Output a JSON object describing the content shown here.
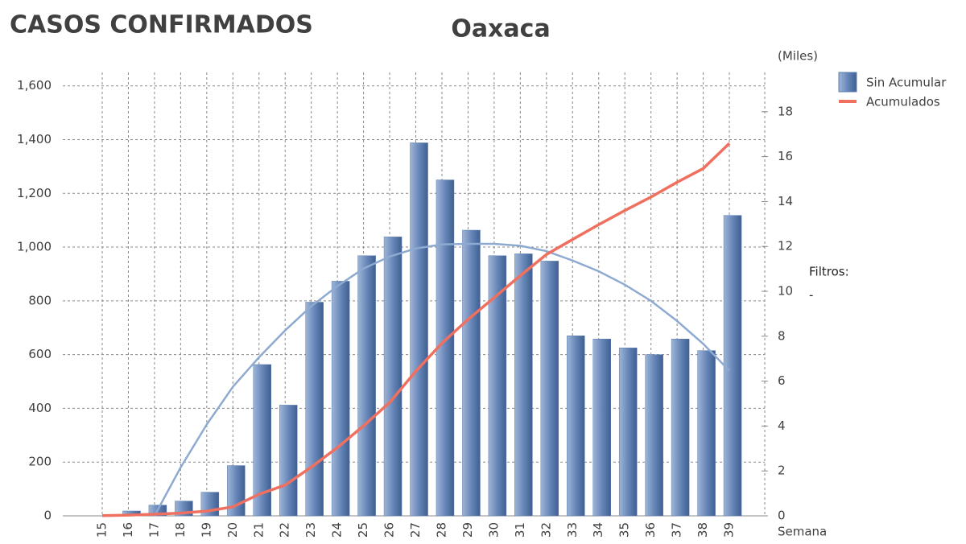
{
  "chart_data": {
    "type": "bar",
    "heading": "CASOS CONFIRMADOS",
    "title": "Oaxaca",
    "x_label": "Semana",
    "y2_label": "(Miles)",
    "filters_label": "Filtros:",
    "filters_value": "-",
    "categories": [
      "15",
      "16",
      "17",
      "18",
      "19",
      "20",
      "21",
      "22",
      "23",
      "24",
      "25",
      "26",
      "27",
      "28",
      "29",
      "30",
      "31",
      "32",
      "33",
      "34",
      "35",
      "36",
      "37",
      "38",
      "39"
    ],
    "series": [
      {
        "name": "Sin Acumular",
        "color": "#5b7db0",
        "values": [
          0,
          18,
          40,
          55,
          88,
          187,
          563,
          412,
          795,
          873,
          968,
          1038,
          1388,
          1250,
          1063,
          968,
          975,
          948,
          670,
          658,
          625,
          600,
          658,
          615,
          1118
        ]
      },
      {
        "name": "Acumulados",
        "color": "#f07060",
        "axis": "y2",
        "values": [
          0.01,
          0.03,
          0.07,
          0.12,
          0.21,
          0.4,
          0.96,
          1.37,
          2.17,
          3.04,
          4.01,
          5.05,
          6.44,
          7.69,
          8.75,
          9.72,
          10.7,
          11.64,
          12.31,
          12.97,
          13.6,
          14.2,
          14.86,
          15.47,
          16.59
        ]
      }
    ],
    "trendline": {
      "color": "#8eaad0",
      "values": [
        null,
        null,
        0,
        180,
        340,
        480,
        590,
        690,
        780,
        855,
        920,
        965,
        995,
        1010,
        1012,
        1012,
        1005,
        985,
        950,
        910,
        860,
        800,
        725,
        640,
        540
      ]
    },
    "ylim": [
      0,
      1650
    ],
    "yticks": [
      0,
      200,
      400,
      600,
      800,
      {
        "value": 1000,
        "label": "1,000"
      },
      {
        "value": 1200,
        "label": "1,200"
      },
      {
        "value": 1400,
        "label": "1,400"
      },
      {
        "value": 1600,
        "label": "1,600"
      }
    ],
    "y2lim": [
      0,
      19.75
    ],
    "y2ticks": [
      0,
      2,
      4,
      6,
      8,
      10,
      12,
      14,
      16,
      18
    ],
    "grid": true,
    "legend": "top-right"
  }
}
